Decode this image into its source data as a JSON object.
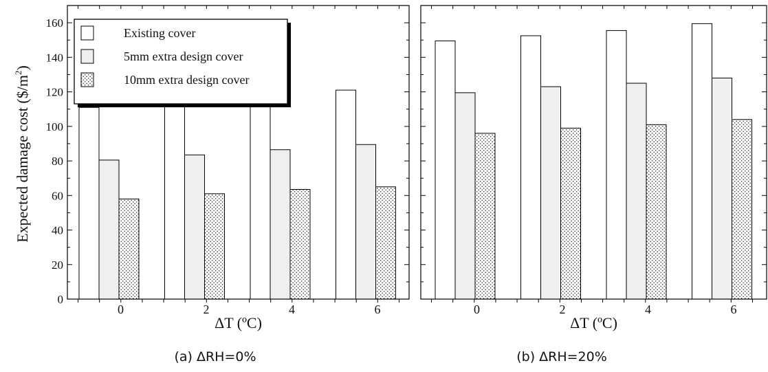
{
  "y_axis_label": "Expected damage cost ($/m",
  "y_axis_label_superscript": "2",
  "y_axis_label_close": ")",
  "legend": {
    "entries": [
      "Existing cover",
      "5mm extra design cover",
      "10mm extra design cover"
    ]
  },
  "chart_data": [
    {
      "type": "bar",
      "caption": "(a) ΔRH=0%",
      "xlabel": "ΔT (ºC)",
      "ylabel": "Expected damage cost ($/m2)",
      "ylim": [
        0,
        170
      ],
      "yticks": [
        0,
        20,
        40,
        60,
        80,
        100,
        120,
        140,
        160
      ],
      "categories": [
        "0",
        "2",
        "4",
        "6"
      ],
      "series": [
        {
          "name": "Existing cover",
          "values": [
            111,
            115,
            118.5,
            121
          ]
        },
        {
          "name": "5mm extra design cover",
          "values": [
            80.5,
            83.5,
            86.5,
            89.5
          ]
        },
        {
          "name": "10mm extra design cover",
          "values": [
            58,
            61,
            63.5,
            65
          ]
        }
      ],
      "legend_position": "top-left"
    },
    {
      "type": "bar",
      "caption": "(b) ΔRH=20%",
      "xlabel": "ΔT (ºC)",
      "ylim": [
        0,
        170
      ],
      "categories": [
        "0",
        "2",
        "4",
        "6"
      ],
      "series": [
        {
          "name": "Existing cover",
          "values": [
            149.5,
            152.5,
            155.5,
            159.5
          ]
        },
        {
          "name": "5mm extra design cover",
          "values": [
            119.5,
            123,
            125,
            128
          ]
        },
        {
          "name": "10mm extra design cover",
          "values": [
            96,
            99,
            101,
            104
          ]
        }
      ]
    }
  ]
}
